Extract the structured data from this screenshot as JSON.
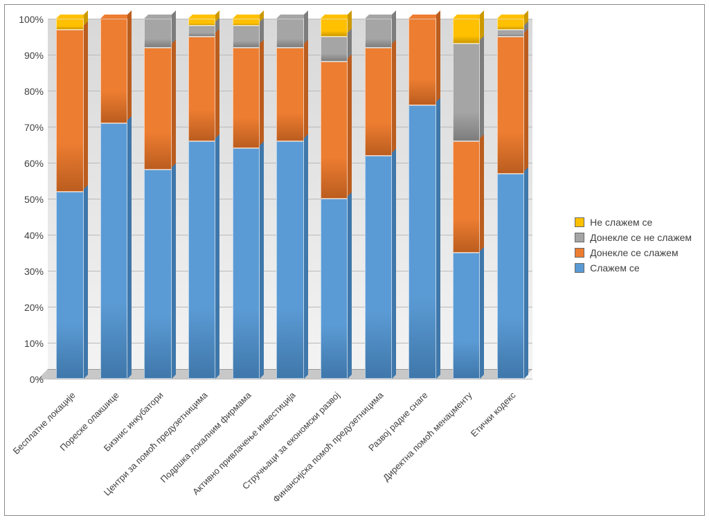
{
  "chart": {
    "type": "stacked_bar_100",
    "ylim": [
      0,
      100
    ],
    "ytick_step": 10,
    "ytick_suffix": "%",
    "plot_bg_gradient": [
      "#d8d8d8",
      "#f4f4f4"
    ],
    "grid_color": "#b9b9b9",
    "border_color": "#888888",
    "floor_color": "#c8c8c8",
    "label_fontsize": 14,
    "xlabel_fontsize": 13,
    "xlabel_rotation": -45,
    "categories": [
      "Бесплатне локације",
      "Пореске олакшице",
      "Бизнис инкубатори",
      "Центри за помоћ предузетницима",
      "Подршка локалним фирмама",
      "Активно привлачење инвестиција",
      "Стручњаци за економски развој",
      "Финансијска помоћ предузетницима",
      "Развој радне снаге",
      "Директна помоћ менаџменту",
      "Етички кодекс"
    ],
    "series": [
      {
        "key": "agree",
        "label": "Слажем се",
        "color": "#5b9bd5",
        "color_shade": "#3f77aa"
      },
      {
        "key": "somewhat_agree",
        "label": "Донекле се слажем",
        "color": "#ed7d31",
        "color_shade": "#bb5d1f"
      },
      {
        "key": "somewhat_disagree",
        "label": "Донекле се не слажем",
        "color": "#a5a5a5",
        "color_shade": "#7d7d7d"
      },
      {
        "key": "disagree",
        "label": "Не слажем се",
        "color": "#ffc000",
        "color_shade": "#cc9900"
      }
    ],
    "legend_order": [
      "disagree",
      "somewhat_disagree",
      "somewhat_agree",
      "agree"
    ],
    "values": [
      {
        "agree": 52,
        "somewhat_agree": 45,
        "somewhat_disagree": 0,
        "disagree": 3
      },
      {
        "agree": 71,
        "somewhat_agree": 29,
        "somewhat_disagree": 0,
        "disagree": 0
      },
      {
        "agree": 58,
        "somewhat_agree": 34,
        "somewhat_disagree": 8,
        "disagree": 0
      },
      {
        "agree": 66,
        "somewhat_agree": 29,
        "somewhat_disagree": 3,
        "disagree": 2
      },
      {
        "agree": 64,
        "somewhat_agree": 28,
        "somewhat_disagree": 6,
        "disagree": 2
      },
      {
        "agree": 66,
        "somewhat_agree": 26,
        "somewhat_disagree": 8,
        "disagree": 0
      },
      {
        "agree": 50,
        "somewhat_agree": 38,
        "somewhat_disagree": 7,
        "disagree": 5
      },
      {
        "agree": 62,
        "somewhat_agree": 30,
        "somewhat_disagree": 8,
        "disagree": 0
      },
      {
        "agree": 76,
        "somewhat_agree": 24,
        "somewhat_disagree": 0,
        "disagree": 0
      },
      {
        "agree": 35,
        "somewhat_agree": 31,
        "somewhat_disagree": 27,
        "disagree": 7
      },
      {
        "agree": 57,
        "somewhat_agree": 38,
        "somewhat_disagree": 2,
        "disagree": 3
      }
    ]
  }
}
